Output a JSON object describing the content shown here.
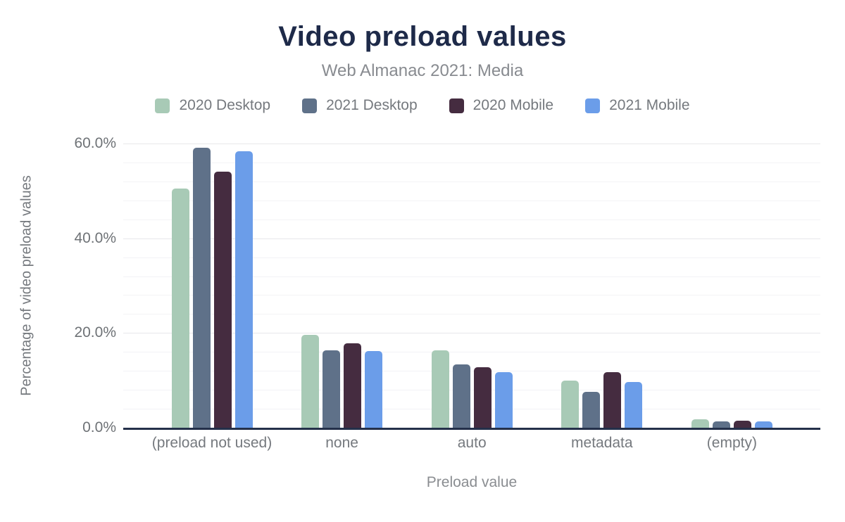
{
  "header": {
    "title": "Video preload values",
    "subtitle": "Web Almanac 2021: Media"
  },
  "chart_data": {
    "type": "bar",
    "title": "Video preload values",
    "subtitle": "Web Almanac 2021: Media",
    "categories": [
      "(preload not used)",
      "none",
      "auto",
      "metadata",
      "(empty)"
    ],
    "series": [
      {
        "name": "2020 Desktop",
        "color": "#a8cab6",
        "values": [
          50.5,
          19.6,
          16.3,
          10.0,
          1.8
        ]
      },
      {
        "name": "2021 Desktop",
        "color": "#5f7189",
        "values": [
          59.1,
          16.4,
          13.3,
          7.6,
          1.4
        ]
      },
      {
        "name": "2020 Mobile",
        "color": "#452c40",
        "values": [
          54.0,
          17.8,
          12.8,
          11.7,
          1.5
        ]
      },
      {
        "name": "2021 Mobile",
        "color": "#6b9de9",
        "values": [
          58.4,
          16.2,
          11.8,
          9.6,
          1.4
        ]
      }
    ],
    "xlabel": "Preload value",
    "ylabel": "Percentage of video preload values",
    "ylim": [
      0,
      60
    ],
    "yticks": [
      {
        "value": 0,
        "label": "0.0%"
      },
      {
        "value": 20,
        "label": "20.0%"
      },
      {
        "value": 40,
        "label": "40.0%"
      },
      {
        "value": 60,
        "label": "60.0%"
      }
    ],
    "minor_grid_step": 4,
    "grid": true,
    "legend_position": "top"
  },
  "colors": {
    "title_text": "#1e2a49",
    "subtitle_text": "#888b90",
    "axis_line": "#24304a",
    "tick_text": "#6e7276",
    "label_text": "#75797e",
    "major_grid": "#e7e7ea",
    "minor_grid": "#f3f3f6"
  }
}
